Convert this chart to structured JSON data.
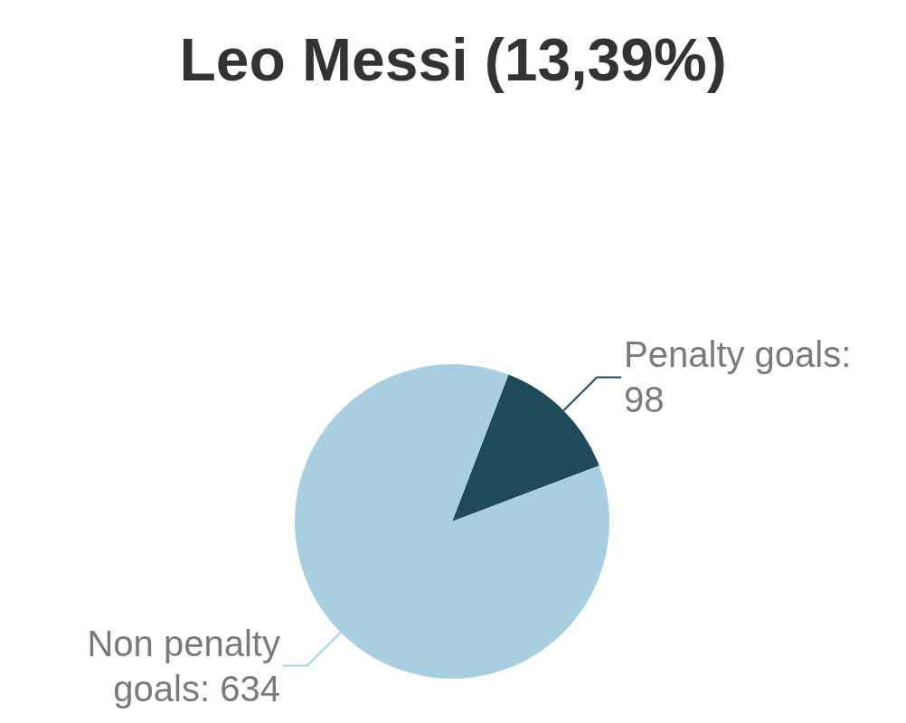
{
  "chart_data": {
    "type": "pie",
    "title": "Leo Messi (13,39%)",
    "categories": [
      null,
      null
    ],
    "values": [
      98,
      634
    ],
    "colors": [
      "#1f4a5b",
      "#a8cfdf"
    ],
    "value_labels": [
      "Penalty goals: 98",
      "Non penalty goals: 634"
    ],
    "legend": false
  }
}
